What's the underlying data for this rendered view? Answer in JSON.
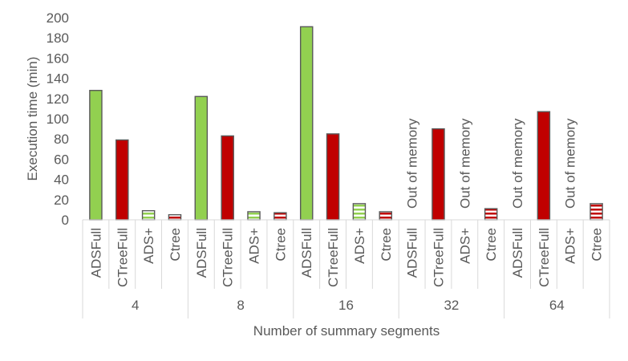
{
  "chart_data": {
    "type": "bar",
    "ylabel": "Execution time (min)",
    "xlabel": "Number of summary segments",
    "ylim": [
      0,
      200
    ],
    "yticks": [
      0,
      20,
      40,
      60,
      80,
      100,
      120,
      140,
      160,
      180,
      200
    ],
    "series_labels": [
      "ADSFull",
      "CTreeFull",
      "ADS+",
      "Ctree"
    ],
    "groups": [
      {
        "label": "4",
        "values": [
          128,
          79,
          9,
          5
        ]
      },
      {
        "label": "8",
        "values": [
          122,
          83,
          8,
          7
        ]
      },
      {
        "label": "16",
        "values": [
          191,
          85,
          16,
          8
        ]
      },
      {
        "label": "32",
        "values": [
          null,
          90,
          null,
          11
        ]
      },
      {
        "label": "64",
        "values": [
          null,
          107,
          null,
          16
        ]
      }
    ],
    "missing_label": "Out of memory",
    "grid": false,
    "colors": {
      "ADSFull": "#92d050",
      "CTreeFull": "#c00000",
      "ADS+": "#92d050",
      "Ctree": "#c00000",
      "outline": "#595959"
    },
    "patterns": {
      "ADS+": "horizontal-stripes",
      "Ctree": "horizontal-stripes"
    }
  }
}
